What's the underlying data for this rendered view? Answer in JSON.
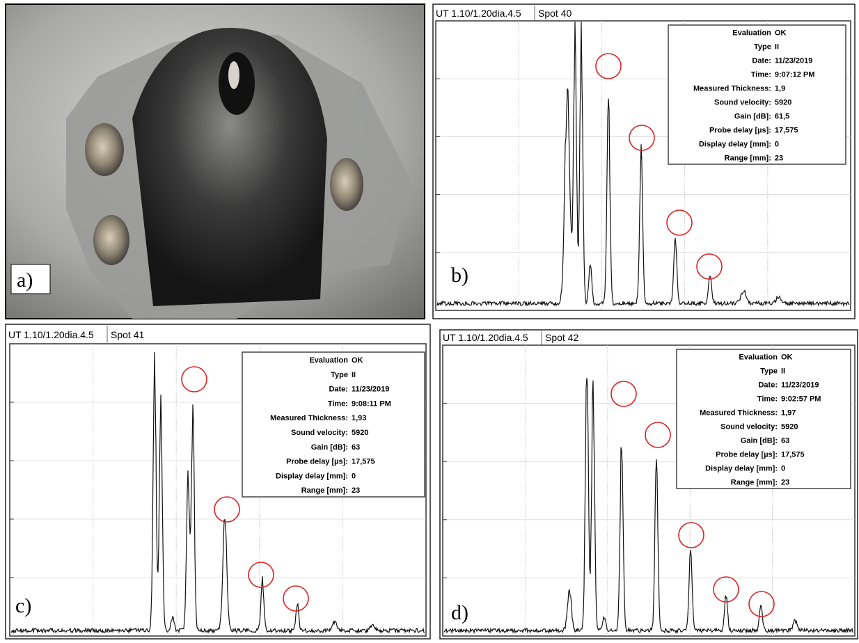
{
  "panels": [
    {
      "label": "a)"
    },
    {
      "label": "b)",
      "header": "UT 1.10/1.20dia.4.5",
      "spot": "Spot 40",
      "info": [
        [
          "Evaluation",
          "OK"
        ],
        [
          "Type",
          "II"
        ],
        [
          "Date:",
          "11/23/2019"
        ],
        [
          "Time:",
          "9:07:12 PM"
        ],
        [
          "Measured Thickness:",
          "1,9"
        ],
        [
          "Sound velocity:",
          "5920"
        ],
        [
          "Gain [dB]:",
          "61,5"
        ],
        [
          "Probe delay [µs]:",
          "17,575"
        ],
        [
          "Display delay [mm]:",
          "0"
        ],
        [
          "Range [mm]:",
          "23"
        ]
      ]
    },
    {
      "label": "c)",
      "header": "UT 1.10/1.20dia.4.5",
      "spot": "Spot 41",
      "info": [
        [
          "Evaluation",
          "OK"
        ],
        [
          "Type",
          "II"
        ],
        [
          "Date:",
          "11/23/2019"
        ],
        [
          "Time:",
          "9:08:11 PM"
        ],
        [
          "Measured Thickness:",
          "1,93"
        ],
        [
          "Sound velocity:",
          "5920"
        ],
        [
          "Gain [dB]:",
          "63"
        ],
        [
          "Probe delay [µs]:",
          "17,575"
        ],
        [
          "Display delay [mm]:",
          "0"
        ],
        [
          "Range [mm]:",
          "23"
        ]
      ]
    },
    {
      "label": "d)",
      "header": "UT 1.10/1.20dia.4.5",
      "spot": "Spot 42",
      "info": [
        [
          "Evaluation",
          "OK"
        ],
        [
          "Type",
          "II"
        ],
        [
          "Date:",
          "11/23/2019"
        ],
        [
          "Time:",
          "9:02:57 PM"
        ],
        [
          "Measured Thickness:",
          "1,97"
        ],
        [
          "Sound velocity:",
          "5920"
        ],
        [
          "Gain [dB]:",
          "63"
        ],
        [
          "Probe delay [µs]:",
          "17,575"
        ],
        [
          "Display delay [mm]:",
          "0"
        ],
        [
          "Range [mm]:",
          "23"
        ]
      ]
    }
  ]
}
